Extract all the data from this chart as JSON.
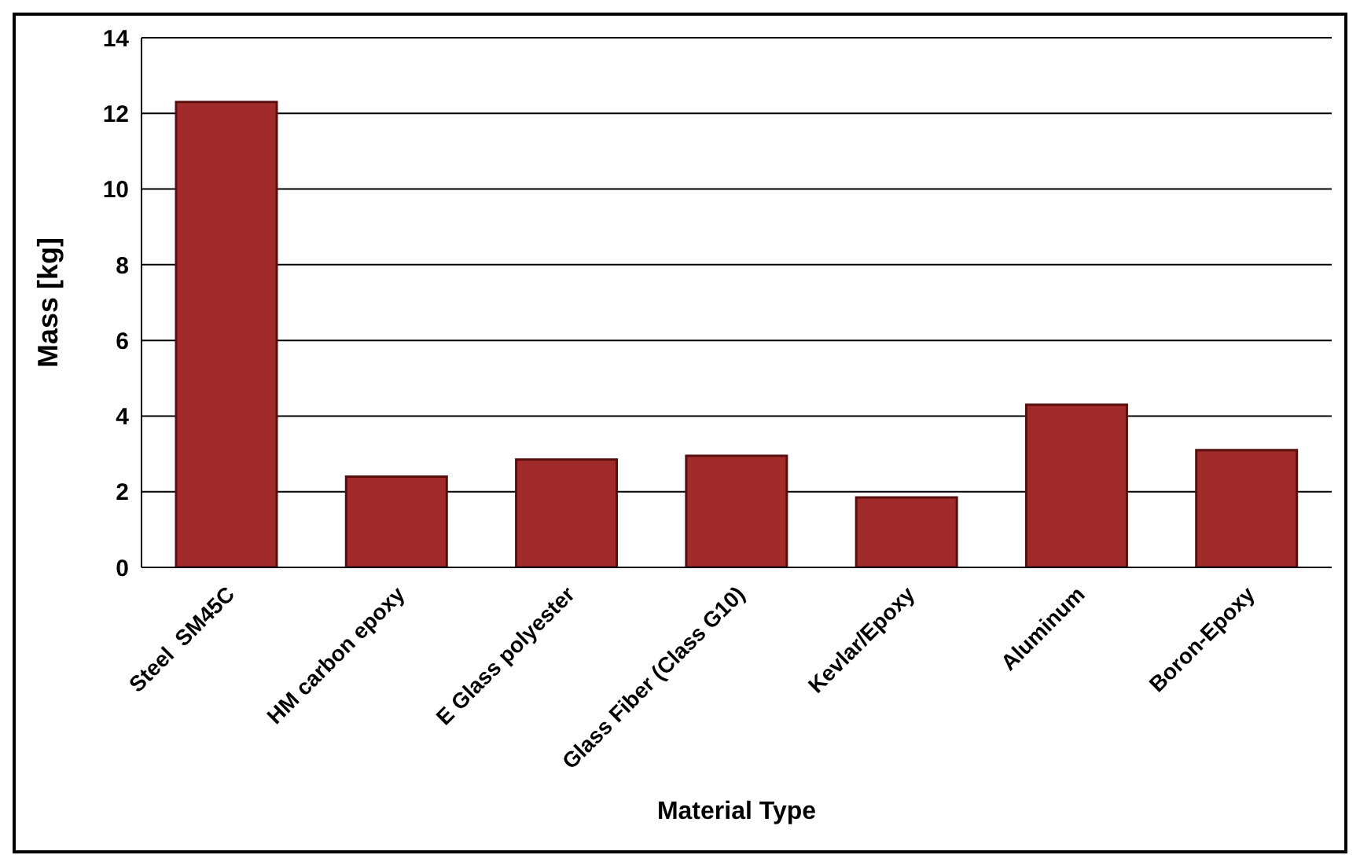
{
  "chart_data": {
    "type": "bar",
    "xlabel": "Material Type",
    "ylabel": "Mass [kg]",
    "categories": [
      "Steel  SM45C",
      "HM carbon epoxy",
      "E Glass polyester",
      "Glass Fiber (Class G10)",
      "Kevlar/Epoxy",
      "Aluminum",
      "Boron-Epoxy"
    ],
    "values": [
      12.3,
      2.4,
      2.85,
      2.95,
      1.85,
      4.3,
      3.1
    ],
    "color": "#a12b2b",
    "ylim": [
      0,
      14
    ],
    "yticks": [
      0,
      2,
      4,
      6,
      8,
      10,
      12,
      14
    ],
    "grid": "y"
  }
}
